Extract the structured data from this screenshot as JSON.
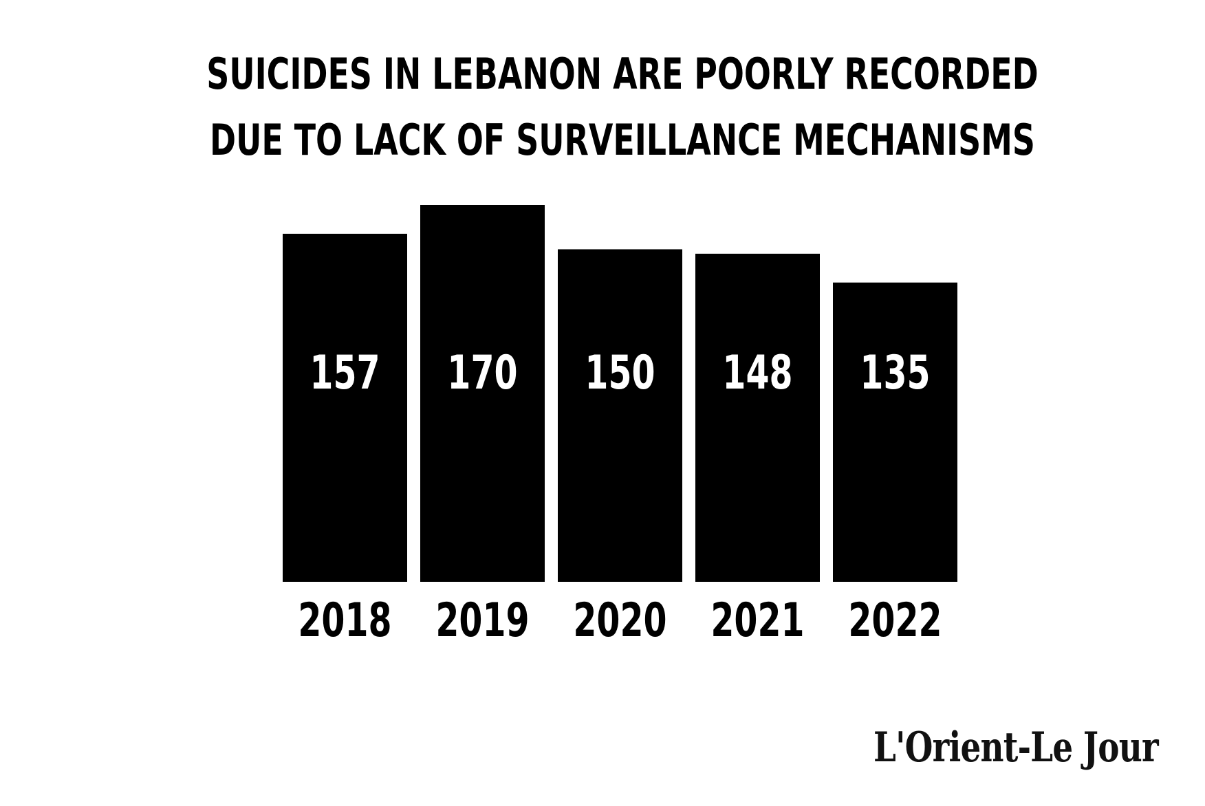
{
  "chart_data": {
    "type": "bar",
    "title": "SUICIDES IN LEBANON ARE POORLY RECORDED DUE TO LACK OF SURVEILLANCE MECHANISMS",
    "title_lines": [
      "SUICIDES IN LEBANON ARE POORLY RECORDED",
      "DUE TO LACK OF SURVEILLANCE MECHANISMS"
    ],
    "categories": [
      "2018",
      "2019",
      "2020",
      "2021",
      "2022"
    ],
    "values": [
      157,
      170,
      150,
      148,
      135
    ],
    "data_labels": [
      "157",
      "170",
      "150",
      "148",
      "135"
    ],
    "xlabel": "",
    "ylabel": "",
    "ylim": [
      0,
      170
    ],
    "grid": false,
    "legend": "none",
    "bar_color": "#000000",
    "label_color": "#ffffff",
    "background": "#ffffff"
  },
  "branding": {
    "logo_text": "L'Orient-Le Jour"
  }
}
